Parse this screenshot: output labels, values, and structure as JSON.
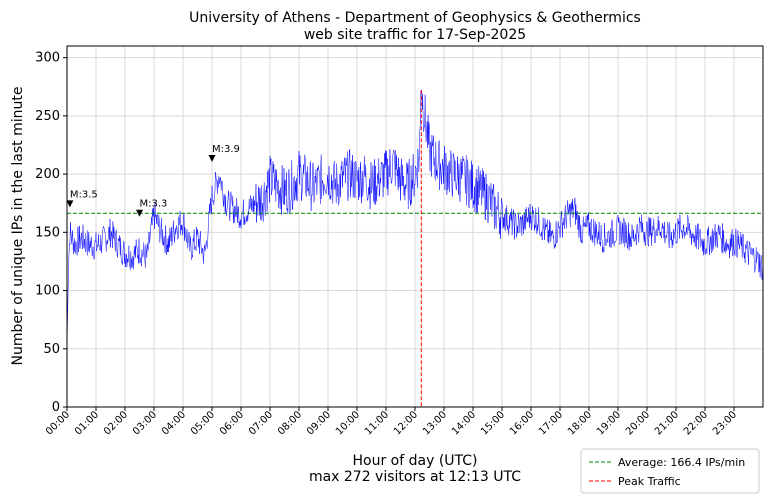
{
  "chart_data": {
    "type": "line",
    "title": "University of Athens - Department of Geophysics & Geothermics",
    "subtitle": "web site traffic for 17-Sep-2025",
    "xlabel": "Hour of day (UTC)",
    "xlabel_sub": "max 272 visitors at 12:13 UTC",
    "ylabel": "Number of unique IPs in the last minute",
    "ylim": [
      0,
      310
    ],
    "yticks": [
      "0",
      "50",
      "100",
      "150",
      "200",
      "250",
      "300"
    ],
    "xlim_hours": [
      0,
      24
    ],
    "xticks": [
      "00:00",
      "01:00",
      "02:00",
      "03:00",
      "04:00",
      "05:00",
      "06:00",
      "07:00",
      "08:00",
      "09:00",
      "10:00",
      "11:00",
      "12:00",
      "13:00",
      "14:00",
      "15:00",
      "16:00",
      "17:00",
      "18:00",
      "19:00",
      "20:00",
      "21:00",
      "22:00",
      "23:00"
    ],
    "grid": true,
    "legend_position": "bottom-right, outside plot",
    "series": [
      {
        "line_color": "#0000ff",
        "x_hours": [
          0.0,
          0.05,
          0.1,
          0.25,
          0.5,
          0.75,
          1.0,
          1.25,
          1.5,
          1.75,
          2.0,
          2.25,
          2.5,
          2.75,
          3.0,
          3.25,
          3.5,
          3.75,
          4.0,
          4.25,
          4.5,
          4.75,
          5.0,
          5.25,
          5.5,
          5.75,
          6.0,
          6.25,
          6.5,
          6.75,
          7.0,
          7.25,
          7.5,
          7.75,
          8.0,
          8.25,
          8.5,
          8.75,
          9.0,
          9.25,
          9.5,
          9.75,
          10.0,
          10.25,
          10.5,
          10.75,
          11.0,
          11.25,
          11.5,
          11.75,
          12.0,
          12.15,
          12.22,
          12.5,
          12.75,
          13.0,
          13.25,
          13.5,
          13.75,
          14.0,
          14.25,
          14.5,
          14.75,
          15.0,
          15.25,
          15.5,
          15.75,
          16.0,
          16.25,
          16.5,
          16.75,
          17.0,
          17.25,
          17.5,
          17.75,
          18.0,
          18.25,
          18.5,
          18.75,
          19.0,
          19.25,
          19.5,
          19.75,
          20.0,
          20.25,
          20.5,
          20.75,
          21.0,
          21.25,
          21.5,
          21.75,
          22.0,
          22.25,
          22.5,
          22.75,
          23.0,
          23.25,
          23.5,
          23.75,
          24.0
        ],
        "values": [
          50,
          120,
          150,
          140,
          145,
          140,
          138,
          143,
          150,
          140,
          132,
          130,
          135,
          128,
          165,
          150,
          140,
          155,
          160,
          135,
          145,
          130,
          180,
          200,
          175,
          170,
          165,
          170,
          175,
          180,
          195,
          190,
          185,
          190,
          200,
          195,
          188,
          195,
          200,
          190,
          195,
          200,
          195,
          198,
          190,
          195,
          200,
          210,
          195,
          190,
          200,
          215,
          272,
          220,
          210,
          205,
          200,
          198,
          195,
          190,
          185,
          180,
          170,
          165,
          160,
          155,
          158,
          165,
          160,
          150,
          145,
          155,
          165,
          170,
          150,
          155,
          150,
          145,
          148,
          152,
          150,
          145,
          155,
          150,
          152,
          155,
          145,
          150,
          155,
          150,
          145,
          140,
          145,
          148,
          140,
          142,
          138,
          132,
          128,
          120
        ]
      }
    ],
    "average": {
      "value": 166.4,
      "label": "Average: 166.4 IPs/min",
      "color": "#008000"
    },
    "peak": {
      "time_hours": 12.2167,
      "value": 272,
      "label": "Peak Traffic",
      "color": "#ff0000"
    },
    "earthquakes": [
      {
        "label": "M:3.5",
        "time_hours": 0.1,
        "value": 174
      },
      {
        "label": "M:3.3",
        "time_hours": 2.5,
        "value": 166
      },
      {
        "label": "M:3.9",
        "time_hours": 5.0,
        "value": 213
      }
    ]
  }
}
